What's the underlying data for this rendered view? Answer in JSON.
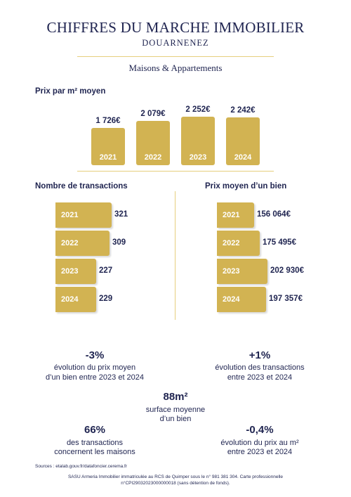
{
  "header": {
    "title": "CHIFFRES DU MARCHE IMMOBILIER",
    "city": "DOUARNENEZ",
    "category": "Maisons & Appartements"
  },
  "colors": {
    "gold": "#d2b352",
    "navy": "#1f2450",
    "line": "#e6cf7d"
  },
  "chart_data": [
    {
      "type": "bar",
      "title": "Prix par m² moyen",
      "categories": [
        "2021",
        "2022",
        "2023",
        "2024"
      ],
      "values": [
        1726,
        2079,
        2252,
        2242
      ],
      "value_labels": [
        "1 726€",
        "2 079€",
        "2 252€",
        "2 242€"
      ]
    },
    {
      "type": "bar",
      "orientation": "horizontal",
      "title": "Nombre de transactions",
      "categories": [
        "2021",
        "2022",
        "2023",
        "2024"
      ],
      "values": [
        321,
        309,
        227,
        229
      ],
      "value_labels": [
        "321",
        "309",
        "227",
        "229"
      ]
    },
    {
      "type": "bar",
      "orientation": "horizontal",
      "title": "Prix moyen d’un bien",
      "categories": [
        "2021",
        "2022",
        "2023",
        "2024"
      ],
      "values": [
        156064,
        175495,
        202930,
        197357
      ],
      "value_labels": [
        "156 064€",
        "175 495€",
        "202 930€",
        "197 357€"
      ]
    }
  ],
  "stats": {
    "price_change": {
      "value": "-3%",
      "line1": "évolution du prix moyen",
      "line2": "d’un bien entre 2023 et 2024"
    },
    "transactions_change": {
      "value": "+1%",
      "line1": "évolution des transactions",
      "line2": "entre 2023 et 2024"
    },
    "surface": {
      "value": "88m²",
      "line1": "surface moyenne",
      "line2": "d’un bien"
    },
    "houses_share": {
      "value": "66%",
      "line1": "des transactions",
      "line2": "concernent les maisons"
    },
    "m2_price_change": {
      "value": "-0,4%",
      "line1": "évolution du prix au m²",
      "line2": "entre 2023 et 2024"
    }
  },
  "footer": {
    "sources": "Sources : etalab.gouv.fr/datafoncier.cerema.fr",
    "legal_line1": "SASU Armeria Immobilier immatriculée au RCS de Quimper sous le n° 981 381 304. Carte professionnelle",
    "legal_line2": "n°CPI29032023000000018 (sans détention de fonds)."
  }
}
